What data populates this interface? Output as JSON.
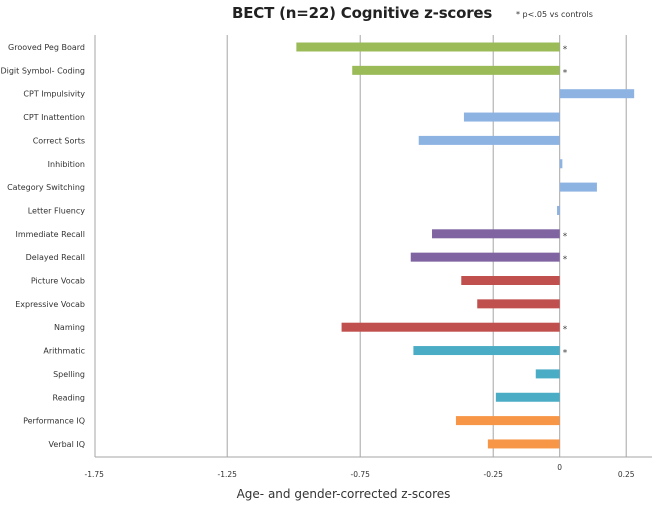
{
  "chart_data": {
    "type": "bar",
    "orientation": "horizontal",
    "title": "BECT (n=22) Cognitive z-scores",
    "annotation": "* p<.05 vs controls",
    "xlabel": "Age- and gender-corrected  z-scores",
    "ylabel": "",
    "xlim": [
      -1.75,
      0.25
    ],
    "xticks": [
      -1.75,
      -1.25,
      -0.75,
      -0.25,
      0,
      0.25
    ],
    "xtick_labels": [
      "-1.75",
      "-1.25",
      "-0.75",
      "-0.25",
      "0",
      "0.25"
    ],
    "grid": true,
    "legend": "none",
    "colors": {
      "motor": "#9bbb59",
      "attention_executive": "#8db3e2",
      "memory": "#8064a2",
      "language": "#c0504d",
      "academic": "#4bacc6",
      "iq": "#f79646",
      "axis": "#a6a6a6"
    },
    "categories": [
      "Grooved Peg Board",
      "Digit Symbol- Coding",
      "CPT Impulsivity",
      "CPT Inattention",
      "Correct Sorts",
      "Inhibition",
      "Category Switching",
      "Letter Fluency",
      "Immediate  Recall",
      "Delayed Recall",
      "Picture Vocab",
      "Expressive Vocab",
      "Naming",
      "Arithmatic",
      "Spelling",
      "Reading",
      "Performance IQ",
      "Verbal IQ"
    ],
    "values": [
      -0.99,
      -0.78,
      0.28,
      -0.36,
      -0.53,
      0.01,
      0.14,
      -0.01,
      -0.48,
      -0.56,
      -0.37,
      -0.31,
      -0.82,
      -0.55,
      -0.09,
      -0.24,
      -0.39,
      -0.27
    ],
    "groups": [
      "motor",
      "motor",
      "attention_executive",
      "attention_executive",
      "attention_executive",
      "attention_executive",
      "attention_executive",
      "attention_executive",
      "memory",
      "memory",
      "language",
      "language",
      "language",
      "academic",
      "academic",
      "academic",
      "iq",
      "iq"
    ],
    "significant": [
      true,
      true,
      false,
      false,
      false,
      false,
      false,
      false,
      true,
      true,
      false,
      false,
      true,
      true,
      false,
      false,
      false,
      false
    ],
    "star_symbol": "*"
  }
}
